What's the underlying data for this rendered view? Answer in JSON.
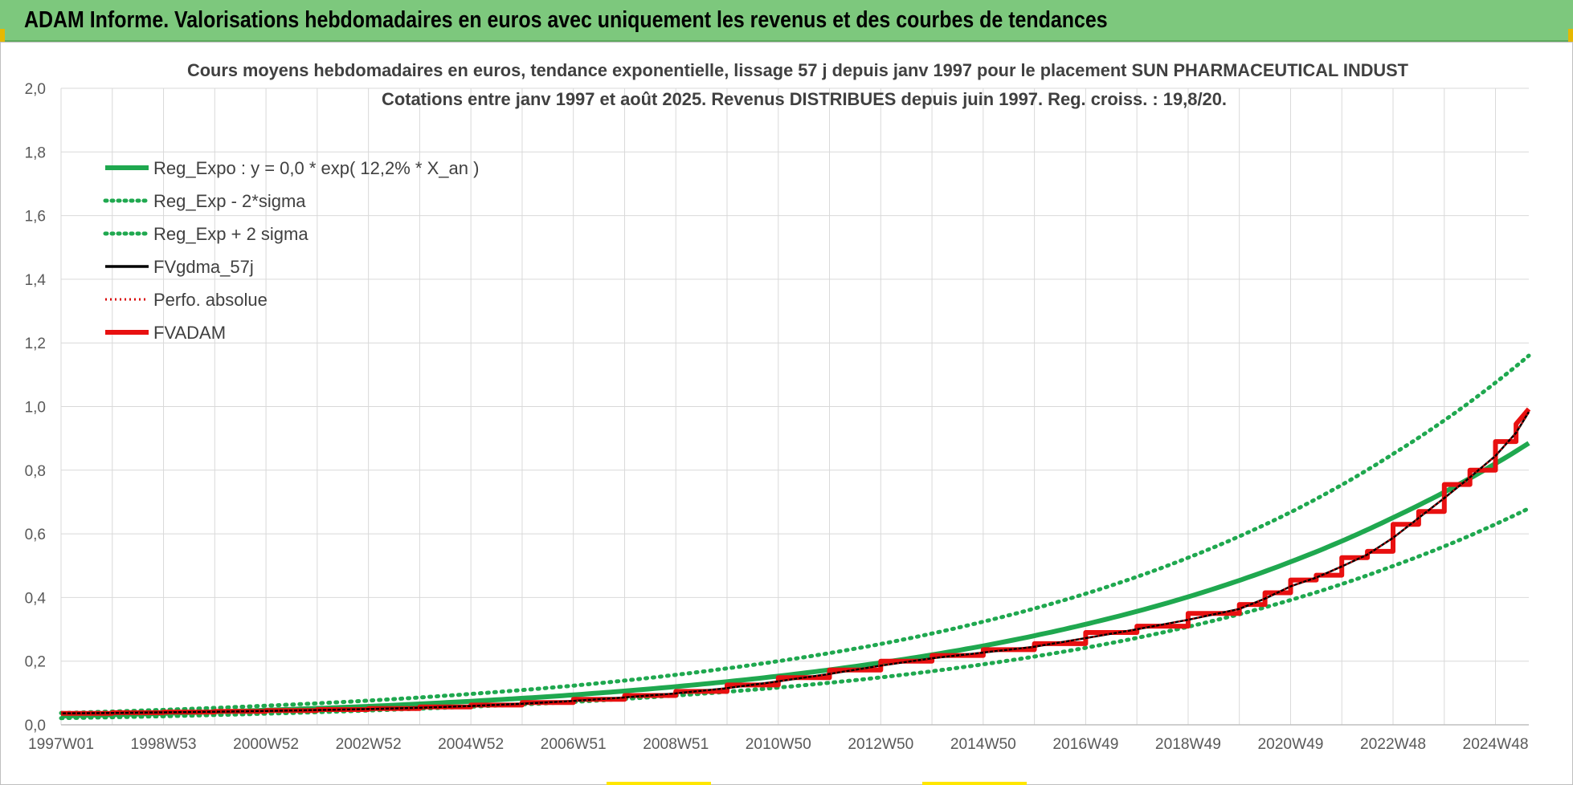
{
  "header": {
    "title": "ADAM Informe. Valorisations hebdomadaires en euros avec uniquement les revenus et des courbes de tendances"
  },
  "colors": {
    "header_bg": "#7dc87d",
    "trend": "#1fa84f",
    "fv57": "#000000",
    "perf": "#d90000",
    "fvadam": "#e81010",
    "grid": "#d9d9d9"
  },
  "chart_data": {
    "type": "line",
    "title_line1": "Cours moyens hebdomadaires en euros, tendance exponentielle, lissage 57 j depuis janv 1997 pour le placement SUN PHARMACEUTICAL INDUST",
    "title_line2": "Cotations entre janv 1997 et août 2025.  Revenus DISTRIBUES depuis juin 1997.  Reg. croiss. : 19,8/20.",
    "xlim": [
      1997.0,
      2025.65
    ],
    "ylim": [
      0,
      2.0
    ],
    "y_ticks": [
      0,
      0.2,
      0.4,
      0.6,
      0.8,
      1.0,
      1.2,
      1.4,
      1.6,
      1.8,
      2.0
    ],
    "y_tick_labels": [
      "0,0",
      "0,2",
      "0,4",
      "0,6",
      "0,8",
      "1,0",
      "1,2",
      "1,4",
      "1,6",
      "1,8",
      "2,0"
    ],
    "x_ticks": [
      1997.0,
      1999.0,
      2001.0,
      2003.0,
      2005.0,
      2007.0,
      2009.0,
      2011.0,
      2013.0,
      2015.0,
      2017.0,
      2019.0,
      2021.0,
      2023.0,
      2025.0
    ],
    "x_tick_labels": [
      "1997W01",
      "1998W53",
      "2000W52",
      "2002W52",
      "2004W52",
      "2006W51",
      "2008W51",
      "2010W50",
      "2012W50",
      "2014W50",
      "2016W49",
      "2018W49",
      "2020W49",
      "2022W48",
      "2024W48"
    ],
    "legend": [
      {
        "name": "Reg_Expo : y = 0,0 * exp( 12,2% *  X_an )",
        "style": "solid-thick",
        "color": "#1fa84f"
      },
      {
        "name": "Reg_Exp - 2*sigma",
        "style": "dotted",
        "color": "#1fa84f"
      },
      {
        "name": "Reg_Exp + 2 sigma",
        "style": "dotted",
        "color": "#1fa84f"
      },
      {
        "name": "FVgdma_57j",
        "style": "solid-thin",
        "color": "#000000"
      },
      {
        "name": "Perfo. absolue",
        "style": "dotted-thin",
        "color": "#d90000"
      },
      {
        "name": "FVADAM",
        "style": "solid-thick",
        "color": "#e81010"
      }
    ],
    "series": [
      {
        "name": "Reg_Expo : y = 0,0 * exp( 12,2% *  X_an )",
        "x": [
          1997,
          1999,
          2001,
          2003,
          2005,
          2007,
          2009,
          2011,
          2013,
          2015,
          2017,
          2019,
          2021,
          2023,
          2025.65
        ],
        "values": [
          0.028,
          0.036,
          0.046,
          0.058,
          0.074,
          0.094,
          0.12,
          0.153,
          0.195,
          0.248,
          0.316,
          0.402,
          0.512,
          0.651,
          0.885
        ]
      },
      {
        "name": "Reg_Exp - 2*sigma",
        "x": [
          1997,
          1999,
          2001,
          2003,
          2005,
          2007,
          2009,
          2011,
          2013,
          2015,
          2017,
          2019,
          2021,
          2023,
          2025.65
        ],
        "values": [
          0.021,
          0.027,
          0.035,
          0.045,
          0.057,
          0.072,
          0.092,
          0.117,
          0.149,
          0.19,
          0.242,
          0.308,
          0.392,
          0.499,
          0.68
        ]
      },
      {
        "name": "Reg_Exp + 2 sigma",
        "x": [
          1997,
          1999,
          2001,
          2003,
          2005,
          2007,
          2009,
          2011,
          2013,
          2015,
          2017,
          2019,
          2021,
          2023,
          2025.65
        ],
        "values": [
          0.037,
          0.047,
          0.06,
          0.076,
          0.097,
          0.123,
          0.157,
          0.2,
          0.254,
          0.324,
          0.412,
          0.525,
          0.668,
          0.851,
          1.16
        ]
      },
      {
        "name": "FVADAM",
        "x": [
          1997.0,
          1998.0,
          1999.0,
          2000.0,
          2001.0,
          2002.0,
          2003.0,
          2004.0,
          2005.0,
          2006.0,
          2007.0,
          2008.0,
          2009.0,
          2010.0,
          2011.0,
          2012.0,
          2013.0,
          2014.0,
          2015.0,
          2016.0,
          2017.0,
          2018.0,
          2019.0,
          2020.0,
          2020.5,
          2021.0,
          2021.5,
          2022.0,
          2022.5,
          2023.0,
          2023.5,
          2024.0,
          2024.5,
          2025.0,
          2025.4
        ],
        "values": [
          0.036,
          0.038,
          0.04,
          0.042,
          0.045,
          0.048,
          0.051,
          0.056,
          0.062,
          0.07,
          0.08,
          0.092,
          0.105,
          0.125,
          0.148,
          0.172,
          0.2,
          0.218,
          0.236,
          0.255,
          0.29,
          0.31,
          0.35,
          0.378,
          0.415,
          0.455,
          0.47,
          0.525,
          0.545,
          0.63,
          0.67,
          0.755,
          0.8,
          0.89,
          0.945
        ]
      }
    ]
  }
}
